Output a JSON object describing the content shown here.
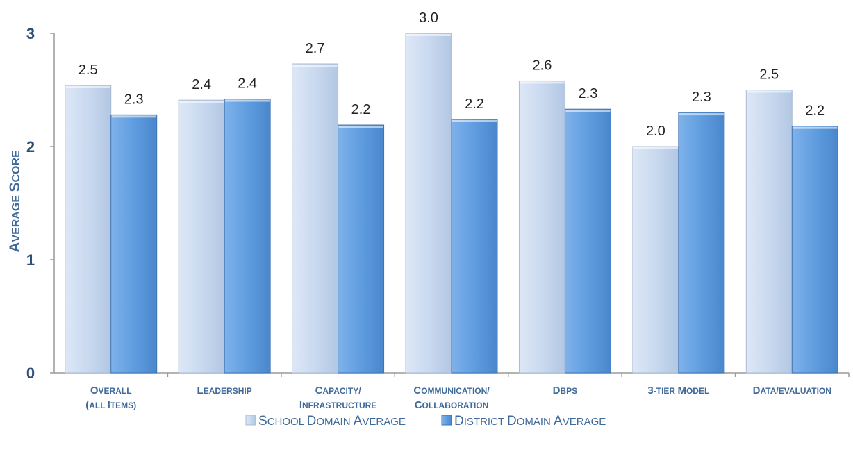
{
  "chart_data": {
    "type": "bar",
    "title": "",
    "xlabel": "",
    "ylabel": "Average Score",
    "ylim": [
      0,
      3
    ],
    "yticks": [
      "0",
      "1",
      "2",
      "3"
    ],
    "categories": [
      [
        "Overall",
        "(All items)"
      ],
      [
        "Leadership"
      ],
      [
        "Capacity/",
        "Infrastructure"
      ],
      [
        "Communication/",
        "Collaboration"
      ],
      [
        "DBPS"
      ],
      [
        "3-Tier Model"
      ],
      [
        "Data/Evaluation"
      ]
    ],
    "series": [
      {
        "name": "School Domain Average",
        "values": [
          2.54,
          2.41,
          2.73,
          3.0,
          2.58,
          2.0,
          2.5
        ],
        "labels": [
          "2.5",
          "2.4",
          "2.7",
          "3.0",
          "2.6",
          "2.0",
          "2.5"
        ],
        "color": "#c9d9ef"
      },
      {
        "name": "District Domain Average",
        "values": [
          2.28,
          2.42,
          2.19,
          2.24,
          2.33,
          2.3,
          2.18
        ],
        "labels": [
          "2.3",
          "2.4",
          "2.2",
          "2.2",
          "2.3",
          "2.3",
          "2.2"
        ],
        "color": "#5f9de0"
      }
    ],
    "grid": false,
    "legend": "bottom-center"
  }
}
